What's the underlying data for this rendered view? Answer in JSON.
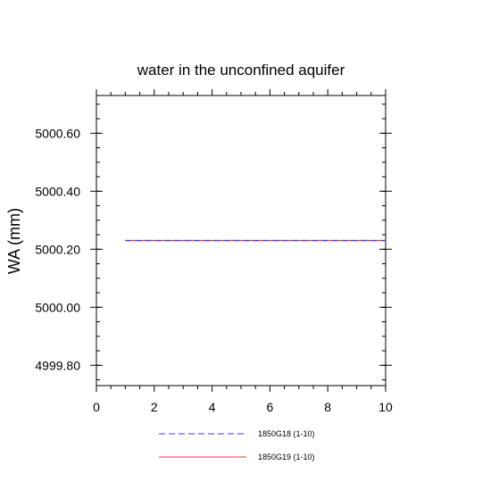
{
  "chart_data": {
    "type": "line",
    "title": "water in the unconfined aquifer",
    "xlabel": "",
    "ylabel": "WA  (mm)",
    "xlim": [
      0,
      10
    ],
    "ylim": [
      4999.73,
      5000.73
    ],
    "x_ticks": [
      0,
      2,
      4,
      6,
      8,
      10
    ],
    "x_tick_labels": [
      "0",
      "2",
      "4",
      "6",
      "8",
      "10"
    ],
    "y_ticks": [
      4999.8,
      5000.0,
      5000.2,
      5000.4,
      5000.6
    ],
    "y_tick_labels": [
      "4999.80",
      "5000.00",
      "5000.20",
      "5000.40",
      "5000.60"
    ],
    "grid": false,
    "legend_position": "bottom",
    "series": [
      {
        "name": "1850G18 (1-10)",
        "color": "#3a3aff",
        "style": "dashed",
        "x": [
          1,
          2,
          3,
          4,
          5,
          6,
          7,
          8,
          9,
          10
        ],
        "values": [
          5000.23,
          5000.23,
          5000.23,
          5000.23,
          5000.23,
          5000.23,
          5000.23,
          5000.23,
          5000.23,
          5000.23
        ]
      },
      {
        "name": "1850G19 (1-10)",
        "color": "#ff3030",
        "style": "solid",
        "x": [
          1,
          2,
          3,
          4,
          5,
          6,
          7,
          8,
          9,
          10
        ],
        "values": [
          5000.23,
          5000.23,
          5000.23,
          5000.23,
          5000.23,
          5000.23,
          5000.23,
          5000.23,
          5000.23,
          5000.23
        ]
      }
    ]
  }
}
